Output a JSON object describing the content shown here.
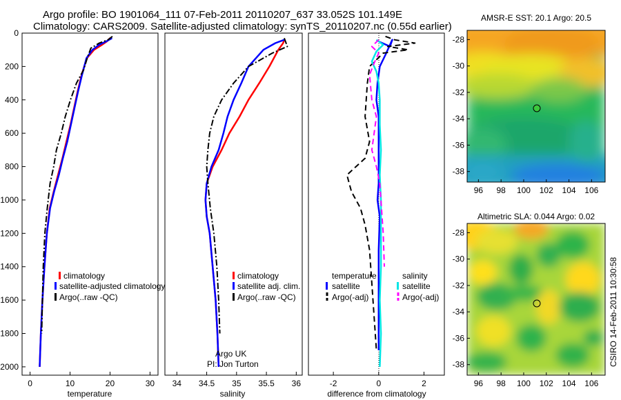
{
  "figure": {
    "title_line1": "Argo profile: BO 1901064_111 07-Feb-2011 20110207_637 33.052S 101.149E",
    "title_line2": "Climatology: CARS2009. Satellite-adjusted climatology: synTS_20110207.nc (0.55d earlier)",
    "credit": "CSIRO 14-Feb-2011 10:30:58",
    "annotation_line1": "Argo UK",
    "annotation_line2": "PI: Jon Turton"
  },
  "colors": {
    "red": "#ff0000",
    "blue": "#0000ff",
    "black": "#000000",
    "cyan": "#00e5e5",
    "magenta": "#ff00ff"
  },
  "chart_data": [
    {
      "type": "line",
      "id": "temperature",
      "xlabel": "temperature",
      "xlim": [
        -2,
        32
      ],
      "ylim": [
        0,
        2050
      ],
      "y_inverted": true,
      "xticks": [
        0,
        10,
        20,
        30
      ],
      "yticks": [
        0,
        200,
        400,
        600,
        800,
        1000,
        1200,
        1400,
        1600,
        1800,
        2000
      ],
      "legend": [
        "climatology",
        "satellite-adjusted climatology",
        "Argo(..raw -QC)"
      ],
      "series": [
        {
          "name": "climatology",
          "color": "red",
          "dash": "solid",
          "x": [
            20.0,
            19.2,
            18.0,
            16.0,
            14.2,
            12.9,
            11.9,
            11.0,
            10.1,
            9.1,
            8.1,
            7.0,
            5.9,
            4.9,
            4.2,
            3.6,
            3.1,
            2.7,
            2.4
          ],
          "y": [
            30,
            50,
            70,
            100,
            150,
            250,
            350,
            450,
            550,
            650,
            750,
            850,
            950,
            1050,
            1200,
            1400,
            1600,
            1800,
            2000
          ]
        },
        {
          "name": "satellite-adjusted climatology",
          "color": "blue",
          "dash": "solid",
          "x": [
            20.5,
            19.0,
            17.3,
            15.6,
            14.1,
            13.0,
            12.0,
            11.1,
            10.2,
            9.3,
            8.2,
            7.2,
            6.0,
            5.0,
            4.2,
            3.6,
            3.1,
            2.7,
            2.4
          ],
          "y": [
            30,
            50,
            70,
            100,
            150,
            250,
            350,
            450,
            550,
            650,
            750,
            850,
            950,
            1050,
            1200,
            1400,
            1600,
            1800,
            2000
          ]
        },
        {
          "name": "Argo(..raw -QC)",
          "color": "black",
          "dash": "dashdot",
          "x": [
            20.6,
            19.5,
            17.3,
            15.2,
            14.3,
            13.4,
            11.6,
            10.1,
            8.8,
            7.8,
            6.6,
            5.9,
            5.0,
            4.3,
            3.7,
            3.3,
            3.1,
            2.9
          ],
          "y": [
            20,
            40,
            60,
            90,
            150,
            220,
            300,
            400,
            500,
            600,
            700,
            800,
            900,
            1050,
            1200,
            1400,
            1600,
            1800
          ]
        }
      ]
    },
    {
      "type": "line",
      "id": "salinity",
      "xlabel": "salinity",
      "xlim": [
        33.8,
        36.1
      ],
      "ylim": [
        0,
        2050
      ],
      "y_inverted": true,
      "xticks": [
        34,
        34.5,
        35,
        35.5,
        36
      ],
      "legend": [
        "climatology",
        "satellite adj. clim.",
        "Argo(..raw -QC)"
      ],
      "series": [
        {
          "name": "climatology",
          "color": "red",
          "dash": "solid",
          "x": [
            35.8,
            35.78,
            35.7,
            35.55,
            35.38,
            35.2,
            35.05,
            34.88,
            34.75,
            34.6,
            34.5,
            34.48,
            34.5,
            34.55,
            34.6,
            34.65,
            34.68,
            34.7
          ],
          "y": [
            40,
            60,
            100,
            200,
            300,
            400,
            500,
            600,
            700,
            800,
            900,
            1000,
            1100,
            1200,
            1400,
            1600,
            1800,
            2000
          ]
        },
        {
          "name": "satellite adj. clim.",
          "color": "blue",
          "dash": "solid",
          "x": [
            35.8,
            35.65,
            35.45,
            35.2,
            35.08,
            34.95,
            34.85,
            34.78,
            34.7,
            34.58,
            34.5,
            34.48,
            34.5,
            34.55,
            34.6,
            34.65,
            34.68,
            34.7
          ],
          "y": [
            40,
            60,
            100,
            200,
            300,
            400,
            500,
            600,
            700,
            800,
            900,
            1000,
            1100,
            1200,
            1400,
            1600,
            1800,
            2000
          ]
        },
        {
          "name": "Argo(..raw -QC)",
          "color": "black",
          "dash": "dashdot",
          "x": [
            35.8,
            35.85,
            35.6,
            35.2,
            34.95,
            34.75,
            34.62,
            34.55,
            34.52,
            34.5,
            34.52,
            34.56,
            34.62,
            34.67,
            34.7,
            34.72
          ],
          "y": [
            30,
            80,
            120,
            200,
            300,
            400,
            500,
            600,
            700,
            800,
            900,
            1050,
            1200,
            1400,
            1600,
            1800
          ]
        }
      ]
    },
    {
      "type": "line",
      "id": "difference",
      "xlabel": "difference from climatology",
      "xlim": [
        -3.1,
        2.9
      ],
      "ylim": [
        0,
        2050
      ],
      "y_inverted": true,
      "xticks": [
        -2,
        0,
        2
      ],
      "legend_titles": [
        "temperature",
        "salinity"
      ],
      "legend": [
        "satellite",
        "Argo(-adj)",
        "satellite",
        "Argo(-adj)"
      ],
      "series": [
        {
          "name": "temperature satellite",
          "color": "blue",
          "dash": "solid",
          "x": [
            0.0,
            0.5,
            0.6,
            0.3,
            0.05,
            -0.05,
            -0.1,
            0.0,
            0.0,
            0.0,
            0.0,
            -0.05,
            0.05,
            0.0,
            0.0,
            0.0
          ],
          "y": [
            50,
            80,
            40,
            130,
            200,
            300,
            400,
            500,
            700,
            800,
            900,
            1000,
            1100,
            1300,
            1600,
            1900
          ]
        },
        {
          "name": "temperature Argo(-adj)",
          "color": "black",
          "dash": "dashed",
          "x": [
            0.3,
            0.7,
            1.6,
            0.4,
            1.3,
            0.2,
            -0.4,
            -0.5,
            -0.6,
            -0.4,
            -0.6,
            -1.4,
            -1.2,
            -0.8,
            -0.6,
            -0.4,
            -0.3,
            -0.2,
            -0.1
          ],
          "y": [
            20,
            40,
            60,
            80,
            100,
            120,
            200,
            300,
            500,
            650,
            750,
            850,
            950,
            1050,
            1150,
            1300,
            1500,
            1700,
            1900
          ]
        },
        {
          "name": "salinity satellite",
          "color": "cyan",
          "dash": "solid",
          "x": [
            -0.1,
            0.2,
            -0.1,
            -0.3,
            -0.1,
            0.0,
            0.05,
            0.05,
            0.1,
            0.05,
            0.1,
            0.1,
            0.1,
            0.05,
            0.1,
            0.05
          ],
          "y": [
            40,
            70,
            110,
            170,
            230,
            300,
            400,
            550,
            700,
            850,
            1000,
            1200,
            1400,
            1600,
            1800,
            2000
          ]
        },
        {
          "name": "salinity Argo(-adj)",
          "color": "magenta",
          "dash": "dashed",
          "x": [
            0.0,
            -0.3,
            0.0,
            -0.2,
            -0.4,
            -0.3,
            -0.1,
            -0.2,
            -0.3,
            -0.1,
            0.05,
            0.1,
            0.15,
            0.2,
            0.25
          ],
          "y": [
            40,
            80,
            120,
            180,
            250,
            400,
            500,
            600,
            700,
            800,
            900,
            1000,
            1100,
            1200,
            1400
          ]
        }
      ]
    },
    {
      "type": "heatmap",
      "id": "sst",
      "title": "AMSR-E SST: 20.1   Argo: 20.5",
      "xlim": [
        95,
        107.2
      ],
      "ylim": [
        -38.8,
        -27.3
      ],
      "xticks": [
        96,
        98,
        100,
        102,
        104,
        106
      ],
      "yticks": [
        -28,
        -30,
        -32,
        -34,
        -36,
        -38
      ],
      "marker": {
        "lon": 101.149,
        "lat": -33.052
      }
    },
    {
      "type": "heatmap",
      "id": "sla",
      "title": "Altimetric SLA: 0.044   Argo: 0.02",
      "xlim": [
        95,
        107.2
      ],
      "ylim": [
        -38.8,
        -27.3
      ],
      "xticks": [
        96,
        98,
        100,
        102,
        104,
        106
      ],
      "yticks": [
        -28,
        -30,
        -32,
        -34,
        -36,
        -38
      ],
      "marker": {
        "lon": 101.149,
        "lat": -33.052
      }
    }
  ]
}
